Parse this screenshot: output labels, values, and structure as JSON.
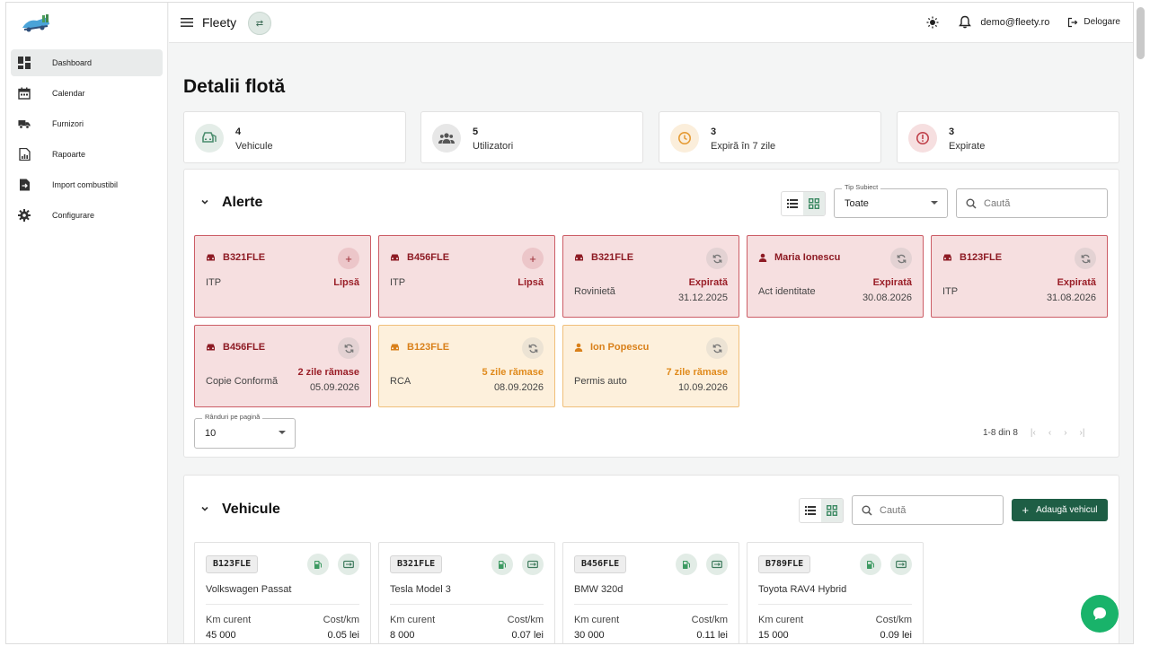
{
  "app": {
    "title": "Fleety"
  },
  "sidebar": {
    "items": [
      {
        "label": "Dashboard",
        "icon": "dashboard-icon",
        "active": true
      },
      {
        "label": "Calendar",
        "icon": "calendar-icon"
      },
      {
        "label": "Furnizori",
        "icon": "truck-icon"
      },
      {
        "label": "Rapoarte",
        "icon": "report-icon"
      },
      {
        "label": "Import combustibil",
        "icon": "file-import-icon"
      },
      {
        "label": "Configurare",
        "icon": "gear-icon"
      }
    ]
  },
  "topbar": {
    "email": "demo@fleety.ro",
    "logout_label": "Delogare"
  },
  "page": {
    "title": "Detalii flotă"
  },
  "stats": [
    {
      "value": "4",
      "label": "Vehicule",
      "icon": "car-icon",
      "color": "#4a8c6d",
      "bg": "#e4ede8"
    },
    {
      "value": "5",
      "label": "Utilizatori",
      "icon": "users-icon",
      "color": "#555555",
      "bg": "#e7e7e7"
    },
    {
      "value": "3",
      "label": "Expiră în 7 zile",
      "icon": "clock-icon",
      "color": "#e59a34",
      "bg": "#fbeedb"
    },
    {
      "value": "3",
      "label": "Expirate",
      "icon": "alert-icon",
      "color": "#c0424b",
      "bg": "#f6dfe0"
    }
  ],
  "alerts": {
    "title": "Alerte",
    "filter": {
      "legend": "Tip Subiect",
      "value": "Toate"
    },
    "search_placeholder": "Caută",
    "cards": [
      {
        "subject": "B321FLE",
        "kind": "vehicle",
        "type": "ITP",
        "status": "Lipsă",
        "date": "",
        "severity": "red",
        "action": "+"
      },
      {
        "subject": "B456FLE",
        "kind": "vehicle",
        "type": "ITP",
        "status": "Lipsă",
        "date": "",
        "severity": "red",
        "action": "+"
      },
      {
        "subject": "B321FLE",
        "kind": "vehicle",
        "type": "Rovinietă",
        "status": "Expirată",
        "date": "31.12.2025",
        "severity": "red",
        "action": "renew"
      },
      {
        "subject": "Maria Ionescu",
        "kind": "person",
        "type": "Act identitate",
        "status": "Expirată",
        "date": "30.08.2026",
        "severity": "red",
        "action": "renew"
      },
      {
        "subject": "B123FLE",
        "kind": "vehicle",
        "type": "ITP",
        "status": "Expirată",
        "date": "31.08.2026",
        "severity": "red",
        "action": "renew"
      },
      {
        "subject": "B456FLE",
        "kind": "vehicle",
        "type": "Copie Conformă",
        "status": "2 zile rămase",
        "date": "05.09.2026",
        "severity": "red",
        "action": "renew"
      },
      {
        "subject": "B123FLE",
        "kind": "vehicle",
        "type": "RCA",
        "status": "5 zile rămase",
        "date": "08.09.2026",
        "severity": "orange",
        "action": "renew"
      },
      {
        "subject": "Ion Popescu",
        "kind": "person",
        "type": "Permis auto",
        "status": "7 zile rămase",
        "date": "10.09.2026",
        "severity": "orange",
        "action": "renew"
      }
    ],
    "rows_per_page": {
      "legend": "Rânduri pe pagină",
      "value": "10"
    },
    "pagination": "1-8 din 8"
  },
  "vehicles": {
    "title": "Vehicule",
    "search_placeholder": "Caută",
    "add_label": "Adaugă vehicul",
    "km_label": "Km curent",
    "cost_label": "Cost/km",
    "items": [
      {
        "plate": "B123FLE",
        "model": "Volkswagen Passat",
        "km": "45 000",
        "cost": "0.05 lei"
      },
      {
        "plate": "B321FLE",
        "model": "Tesla Model 3",
        "km": "8 000",
        "cost": "0.07 lei"
      },
      {
        "plate": "B456FLE",
        "model": "BMW 320d",
        "km": "30 000",
        "cost": "0.11 lei"
      },
      {
        "plate": "B789FLE",
        "model": "Toyota RAV4 Hybrid",
        "km": "15 000",
        "cost": "0.09 lei"
      }
    ]
  }
}
